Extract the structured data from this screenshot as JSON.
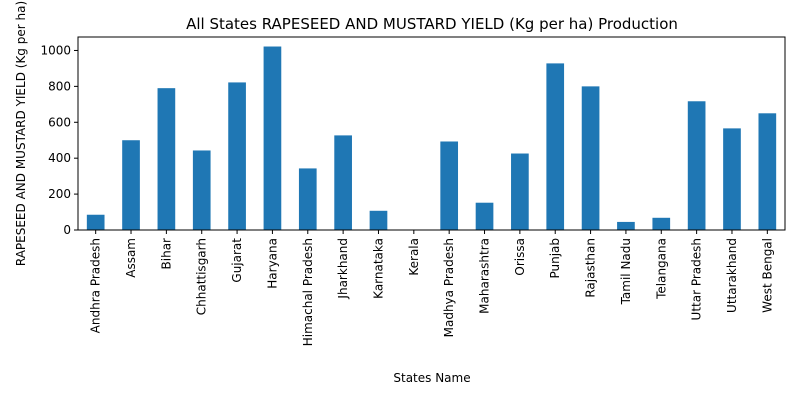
{
  "chart_data": {
    "type": "bar",
    "title": "All States RAPESEED AND MUSTARD YIELD (Kg per ha) Production",
    "xlabel": "States Name",
    "ylabel": "RAPESEED AND MUSTARD YIELD (Kg per ha)",
    "categories": [
      "Andhra Pradesh",
      "Assam",
      "Bihar",
      "Chhattisgarh",
      "Gujarat",
      "Haryana",
      "Himachal Pradesh",
      "Jharkhand",
      "Karnataka",
      "Kerala",
      "Madhya Pradesh",
      "Maharashtra",
      "Orissa",
      "Punjab",
      "Rajasthan",
      "Tamil Nadu",
      "Telangana",
      "Uttar Pradesh",
      "Uttarakhand",
      "West Bengal"
    ],
    "values": [
      85,
      500,
      790,
      443,
      822,
      1022,
      343,
      527,
      107,
      0,
      493,
      152,
      426,
      928,
      800,
      45,
      68,
      717,
      566,
      650
    ],
    "ylim": [
      0,
      1075
    ],
    "yticks": [
      0,
      200,
      400,
      600,
      800,
      1000
    ],
    "grid": false,
    "legend": "none",
    "bar_color": "#1f77b4"
  }
}
